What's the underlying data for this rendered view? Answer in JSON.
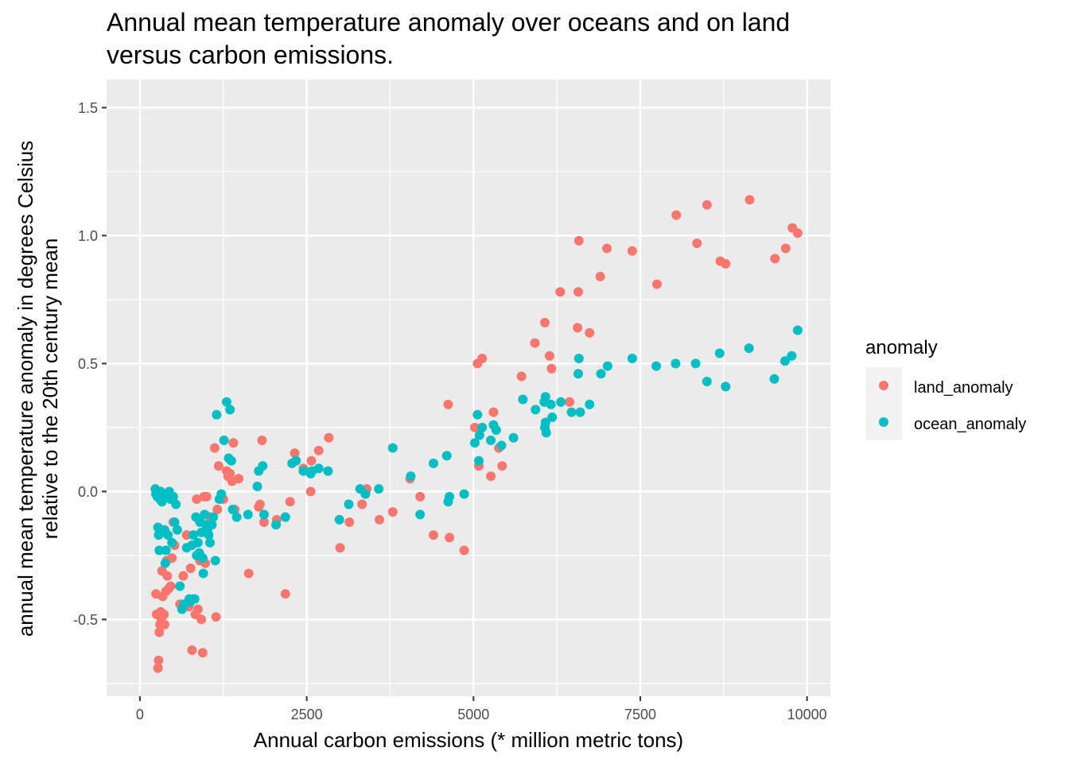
{
  "chart_data": {
    "type": "scatter",
    "title_lines": [
      "Annual mean temperature anomaly over oceans and on land",
      "versus carbon emissions."
    ],
    "xlabel": "Annual carbon emissions (* million metric tons)",
    "ylabel_lines": [
      "annual mean temperature anomaly in degrees Celsius",
      "relative to the 20th century mean"
    ],
    "xlim": [
      -500,
      10350
    ],
    "ylim": [
      -0.8,
      1.61
    ],
    "x_ticks": [
      0,
      2500,
      5000,
      7500,
      10000
    ],
    "x_tick_labels": [
      "0",
      "2500",
      "5000",
      "7500",
      "10000"
    ],
    "y_ticks": [
      -0.5,
      0.0,
      0.5,
      1.0,
      1.5
    ],
    "y_tick_labels": [
      "-0.5",
      "0.0",
      "0.5",
      "1.0",
      "1.5"
    ],
    "grid": true,
    "legend_title": "anomaly",
    "legend_position": "right",
    "series": [
      {
        "name": "land_anomaly",
        "color": "#F8766D",
        "points": [
          [
            240,
            -0.4
          ],
          [
            250,
            -0.48
          ],
          [
            270,
            -0.69
          ],
          [
            280,
            -0.66
          ],
          [
            290,
            -0.55
          ],
          [
            300,
            -0.52
          ],
          [
            310,
            -0.47
          ],
          [
            320,
            -0.5
          ],
          [
            330,
            -0.31
          ],
          [
            340,
            -0.41
          ],
          [
            360,
            -0.48
          ],
          [
            370,
            -0.52
          ],
          [
            390,
            -0.39
          ],
          [
            400,
            -0.27
          ],
          [
            410,
            -0.33
          ],
          [
            430,
            -0.38
          ],
          [
            460,
            -0.37
          ],
          [
            480,
            -0.26
          ],
          [
            500,
            -0.12
          ],
          [
            520,
            -0.21
          ],
          [
            600,
            -0.44
          ],
          [
            650,
            -0.33
          ],
          [
            700,
            -0.17
          ],
          [
            730,
            -0.45
          ],
          [
            760,
            -0.3
          ],
          [
            780,
            -0.62
          ],
          [
            800,
            -0.42
          ],
          [
            830,
            -0.48
          ],
          [
            850,
            -0.03
          ],
          [
            870,
            -0.46
          ],
          [
            900,
            -0.27
          ],
          [
            920,
            -0.5
          ],
          [
            940,
            -0.63
          ],
          [
            960,
            -0.02
          ],
          [
            980,
            -0.28
          ],
          [
            1000,
            -0.02
          ],
          [
            1050,
            -0.1
          ],
          [
            1120,
            0.17
          ],
          [
            1140,
            -0.49
          ],
          [
            1160,
            -0.07
          ],
          [
            1180,
            0.1
          ],
          [
            1250,
            -0.03
          ],
          [
            1300,
            0.08
          ],
          [
            1320,
            0.06
          ],
          [
            1350,
            0.07
          ],
          [
            1380,
            0.04
          ],
          [
            1400,
            0.19
          ],
          [
            1420,
            -0.07
          ],
          [
            1480,
            0.05
          ],
          [
            1630,
            -0.32
          ],
          [
            1780,
            -0.06
          ],
          [
            1800,
            -0.05
          ],
          [
            1830,
            0.2
          ],
          [
            1860,
            -0.12
          ],
          [
            2050,
            -0.11
          ],
          [
            2180,
            -0.4
          ],
          [
            2250,
            -0.04
          ],
          [
            2320,
            0.15
          ],
          [
            2450,
            0.09
          ],
          [
            2560,
            0.0
          ],
          [
            2570,
            0.12
          ],
          [
            2680,
            0.16
          ],
          [
            2830,
            0.21
          ],
          [
            3000,
            -0.22
          ],
          [
            3140,
            -0.12
          ],
          [
            3330,
            -0.05
          ],
          [
            3400,
            0.01
          ],
          [
            3590,
            -0.11
          ],
          [
            3790,
            -0.08
          ],
          [
            4050,
            0.05
          ],
          [
            4200,
            -0.02
          ],
          [
            4400,
            -0.17
          ],
          [
            4620,
            0.34
          ],
          [
            4640,
            -0.18
          ],
          [
            4860,
            -0.23
          ],
          [
            5020,
            0.25
          ],
          [
            5060,
            0.5
          ],
          [
            5080,
            0.1
          ],
          [
            5130,
            0.52
          ],
          [
            5260,
            0.06
          ],
          [
            5300,
            0.31
          ],
          [
            5380,
            0.17
          ],
          [
            5430,
            0.1
          ],
          [
            5720,
            0.45
          ],
          [
            5920,
            0.58
          ],
          [
            6070,
            0.66
          ],
          [
            6140,
            0.53
          ],
          [
            6170,
            0.48
          ],
          [
            6300,
            0.78
          ],
          [
            6440,
            0.35
          ],
          [
            6560,
            0.64
          ],
          [
            6570,
            0.78
          ],
          [
            6580,
            0.98
          ],
          [
            6740,
            0.62
          ],
          [
            6900,
            0.84
          ],
          [
            7000,
            0.95
          ],
          [
            7380,
            0.94
          ],
          [
            7750,
            0.81
          ],
          [
            8040,
            1.08
          ],
          [
            8350,
            0.97
          ],
          [
            8500,
            1.12
          ],
          [
            8700,
            0.9
          ],
          [
            8780,
            0.89
          ],
          [
            9140,
            1.14
          ],
          [
            9520,
            0.91
          ],
          [
            9680,
            0.95
          ],
          [
            9780,
            1.03
          ],
          [
            9860,
            1.01
          ]
        ]
      },
      {
        "name": "ocean_anomaly",
        "color": "#00BFC4",
        "points": [
          [
            230,
            0.01
          ],
          [
            240,
            -0.01
          ],
          [
            260,
            -0.02
          ],
          [
            270,
            -0.14
          ],
          [
            280,
            -0.17
          ],
          [
            290,
            -0.23
          ],
          [
            300,
            -0.03
          ],
          [
            310,
            0.0
          ],
          [
            330,
            -0.04
          ],
          [
            340,
            -0.01
          ],
          [
            360,
            -0.02
          ],
          [
            370,
            -0.15
          ],
          [
            380,
            -0.28
          ],
          [
            390,
            -0.23
          ],
          [
            400,
            -0.02
          ],
          [
            420,
            -0.17
          ],
          [
            440,
            0.0
          ],
          [
            460,
            -0.03
          ],
          [
            480,
            -0.2
          ],
          [
            500,
            -0.02
          ],
          [
            520,
            -0.12
          ],
          [
            540,
            -0.05
          ],
          [
            560,
            -0.15
          ],
          [
            600,
            -0.37
          ],
          [
            630,
            -0.46
          ],
          [
            660,
            -0.44
          ],
          [
            700,
            -0.22
          ],
          [
            740,
            -0.42
          ],
          [
            760,
            -0.43
          ],
          [
            780,
            -0.21
          ],
          [
            800,
            -0.17
          ],
          [
            820,
            -0.42
          ],
          [
            840,
            -0.1
          ],
          [
            850,
            -0.25
          ],
          [
            870,
            -0.2
          ],
          [
            890,
            -0.24
          ],
          [
            900,
            -0.12
          ],
          [
            920,
            -0.16
          ],
          [
            940,
            -0.26
          ],
          [
            950,
            -0.32
          ],
          [
            970,
            -0.09
          ],
          [
            990,
            -0.13
          ],
          [
            1010,
            -0.15
          ],
          [
            1030,
            -0.17
          ],
          [
            1050,
            -0.2
          ],
          [
            1080,
            -0.13
          ],
          [
            1100,
            -0.1
          ],
          [
            1130,
            -0.27
          ],
          [
            1150,
            0.3
          ],
          [
            1190,
            -0.03
          ],
          [
            1220,
            -0.01
          ],
          [
            1260,
            0.2
          ],
          [
            1300,
            0.35
          ],
          [
            1330,
            0.13
          ],
          [
            1350,
            0.32
          ],
          [
            1370,
            0.12
          ],
          [
            1390,
            -0.07
          ],
          [
            1450,
            -0.1
          ],
          [
            1620,
            -0.09
          ],
          [
            1760,
            0.02
          ],
          [
            1780,
            0.08
          ],
          [
            1840,
            0.1
          ],
          [
            1860,
            -0.09
          ],
          [
            2040,
            -0.13
          ],
          [
            2180,
            -0.1
          ],
          [
            2280,
            0.11
          ],
          [
            2340,
            0.12
          ],
          [
            2450,
            0.08
          ],
          [
            2560,
            0.07
          ],
          [
            2580,
            0.08
          ],
          [
            2680,
            0.09
          ],
          [
            2820,
            0.08
          ],
          [
            2990,
            -0.11
          ],
          [
            3130,
            -0.05
          ],
          [
            3300,
            0.01
          ],
          [
            3380,
            -0.01
          ],
          [
            3580,
            0.01
          ],
          [
            3790,
            0.17
          ],
          [
            4060,
            0.06
          ],
          [
            4200,
            -0.09
          ],
          [
            4400,
            0.11
          ],
          [
            4600,
            0.14
          ],
          [
            4620,
            -0.04
          ],
          [
            4640,
            -0.02
          ],
          [
            4860,
            -0.01
          ],
          [
            5020,
            0.19
          ],
          [
            5060,
            0.3
          ],
          [
            5080,
            0.12
          ],
          [
            5090,
            0.22
          ],
          [
            5130,
            0.25
          ],
          [
            5260,
            0.2
          ],
          [
            5300,
            0.26
          ],
          [
            5340,
            0.24
          ],
          [
            5420,
            0.18
          ],
          [
            5600,
            0.21
          ],
          [
            5740,
            0.36
          ],
          [
            5930,
            0.32
          ],
          [
            6060,
            0.35
          ],
          [
            6070,
            0.25
          ],
          [
            6080,
            0.27
          ],
          [
            6080,
            0.37
          ],
          [
            6090,
            0.23
          ],
          [
            6160,
            0.34
          ],
          [
            6180,
            0.29
          ],
          [
            6310,
            0.35
          ],
          [
            6470,
            0.31
          ],
          [
            6570,
            0.46
          ],
          [
            6580,
            0.52
          ],
          [
            6600,
            0.31
          ],
          [
            6740,
            0.34
          ],
          [
            6910,
            0.46
          ],
          [
            7010,
            0.49
          ],
          [
            7380,
            0.52
          ],
          [
            7740,
            0.49
          ],
          [
            8030,
            0.5
          ],
          [
            8330,
            0.5
          ],
          [
            8500,
            0.43
          ],
          [
            8690,
            0.54
          ],
          [
            8780,
            0.41
          ],
          [
            9130,
            0.56
          ],
          [
            9510,
            0.44
          ],
          [
            9670,
            0.51
          ],
          [
            9770,
            0.53
          ],
          [
            9860,
            0.63
          ]
        ]
      }
    ]
  }
}
